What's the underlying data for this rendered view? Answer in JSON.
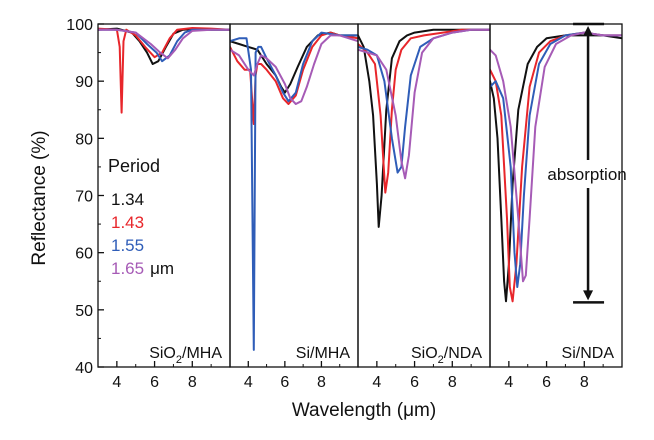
{
  "chart_data": {
    "type": "line",
    "title": "",
    "ylabel": "Reflectance (%)",
    "xlabel": "Wavelength (μm)",
    "ylim": [
      40,
      100
    ],
    "yticks": [
      40,
      50,
      60,
      70,
      80,
      90,
      100
    ],
    "xlim": [
      3,
      10
    ],
    "xticks": [
      4,
      6,
      8
    ],
    "legend": {
      "title": "Period",
      "unit": "μm",
      "entries": [
        {
          "label": "1.34",
          "color": "#111111"
        },
        {
          "label": "1.43",
          "color": "#e8262b"
        },
        {
          "label": "1.55",
          "color": "#2f5db8"
        },
        {
          "label": "1.65",
          "color": "#a65bb6"
        }
      ]
    },
    "panels": [
      {
        "label_main": "SiO",
        "label_sub": "2",
        "label_rest": "/MHA",
        "series": [
          {
            "name": "1.34",
            "color": "#111111",
            "x": [
              3,
              4,
              4.8,
              5.2,
              5.6,
              5.9,
              6.2,
              6.6,
              7.0,
              7.5,
              8,
              9,
              10
            ],
            "y": [
              99,
              99.2,
              98.5,
              97,
              95,
              93,
              93.5,
              96,
              98.3,
              99,
              99.1,
              99,
              99
            ]
          },
          {
            "name": "1.43",
            "color": "#e8262b",
            "x": [
              3,
              4,
              4.15,
              4.25,
              4.35,
              4.5,
              5,
              5.5,
              6.0,
              6.4,
              6.8,
              7.2,
              8,
              9,
              10
            ],
            "y": [
              99.2,
              99,
              96,
              84.5,
              97,
              99,
              98,
              96,
              94.2,
              95,
              97.5,
              99,
              99.3,
              99.2,
              99
            ]
          },
          {
            "name": "1.55",
            "color": "#2f5db8",
            "x": [
              3,
              4,
              5,
              5.6,
              6.1,
              6.4,
              6.8,
              7.2,
              7.6,
              8,
              9,
              10
            ],
            "y": [
              99,
              99,
              98.5,
              96.5,
              95,
              93.5,
              94.5,
              97,
              98.5,
              99,
              99,
              99
            ]
          },
          {
            "name": "1.65",
            "color": "#a65bb6",
            "x": [
              3,
              4,
              5,
              5.8,
              6.3,
              6.7,
              7.1,
              7.5,
              8,
              9,
              10
            ],
            "y": [
              99,
              99,
              98.5,
              96.5,
              95,
              94,
              95.5,
              97.5,
              98.8,
              99,
              99
            ]
          }
        ]
      },
      {
        "label_main": "Si/MHA",
        "label_sub": "",
        "label_rest": "",
        "series": [
          {
            "name": "1.34",
            "color": "#111111",
            "x": [
              3,
              3.5,
              4.0,
              4.5,
              5,
              5.5,
              5.8,
              6.0,
              6.3,
              6.7,
              7.2,
              7.8,
              8.5,
              9,
              10
            ],
            "y": [
              97,
              96.5,
              96,
              95.5,
              93,
              91,
              89,
              88,
              89.5,
              92.5,
              96,
              98,
              98.5,
              98,
              98
            ]
          },
          {
            "name": "1.43",
            "color": "#e8262b",
            "x": [
              3,
              3.4,
              3.8,
              4.1,
              4.3,
              4.4,
              4.5,
              4.7,
              5,
              5.5,
              5.9,
              6.2,
              6.6,
              7.0,
              7.5,
              8,
              8.5,
              9,
              10
            ],
            "y": [
              96,
              93.5,
              92,
              92,
              82.5,
              91,
              93,
              93,
              92,
              90,
              87,
              86,
              87.5,
              92,
              96,
              98,
              98.5,
              98,
              97.5
            ]
          },
          {
            "name": "1.55",
            "color": "#2f5db8",
            "x": [
              3,
              3.5,
              3.9,
              4.15,
              4.3,
              4.4,
              4.55,
              4.7,
              5,
              5.5,
              5.9,
              6.2,
              6.6,
              7.0,
              7.5,
              8,
              9,
              10
            ],
            "y": [
              97,
              97.5,
              97.5,
              92,
              43,
              95,
              96,
              96,
              94,
              91,
              88,
              86.5,
              88,
              93,
              97,
              98.5,
              98,
              98
            ]
          },
          {
            "name": "1.65",
            "color": "#a65bb6",
            "x": [
              3,
              3.5,
              4.0,
              4.3,
              4.5,
              4.7,
              5,
              5.5,
              6.0,
              6.3,
              6.6,
              6.9,
              7.2,
              7.6,
              8,
              8.5,
              9,
              10
            ],
            "y": [
              95.5,
              94.5,
              92,
              91,
              93,
              94.5,
              94,
              92.5,
              89.5,
              87,
              86,
              86.5,
              89,
              93,
              96.5,
              98,
              98,
              97
            ]
          }
        ]
      },
      {
        "label_main": "SiO",
        "label_sub": "2",
        "label_rest": "/NDA",
        "series": [
          {
            "name": "1.34",
            "color": "#111111",
            "x": [
              3,
              3.3,
              3.6,
              3.8,
              4.0,
              4.1,
              4.25,
              4.5,
              4.8,
              5.2,
              5.6,
              6.0,
              7,
              8,
              9,
              10
            ],
            "y": [
              98,
              96,
              90,
              84,
              72,
              64.5,
              70,
              85,
              94,
              97,
              98,
              98.5,
              99,
              99,
              99,
              99
            ]
          },
          {
            "name": "1.43",
            "color": "#e8262b",
            "x": [
              3,
              3.5,
              3.9,
              4.2,
              4.45,
              4.6,
              4.8,
              5.0,
              5.3,
              5.8,
              6.5,
              7.5,
              8.5,
              10
            ],
            "y": [
              96.5,
              95,
              93,
              84,
              70.5,
              74,
              85,
              92,
              95.5,
              97.5,
              98,
              98.5,
              99,
              99
            ]
          },
          {
            "name": "1.55",
            "color": "#2f5db8",
            "x": [
              3,
              3.5,
              4.0,
              4.4,
              4.8,
              5.1,
              5.3,
              5.5,
              5.8,
              6.3,
              7,
              8,
              9,
              10
            ],
            "y": [
              96,
              95.5,
              94.5,
              90,
              80,
              74,
              75,
              82,
              91,
              96,
              97.5,
              98.5,
              99,
              99
            ]
          },
          {
            "name": "1.65",
            "color": "#a65bb6",
            "x": [
              3,
              3.5,
              4.0,
              4.5,
              5.0,
              5.3,
              5.5,
              5.7,
              6.0,
              6.4,
              7,
              8,
              9,
              10
            ],
            "y": [
              95.5,
              95,
              94.5,
              92,
              84,
              76,
              73,
              77,
              88,
              95,
              97.5,
              98.5,
              99,
              99
            ]
          }
        ]
      },
      {
        "label_main": "Si/NDA",
        "label_sub": "",
        "label_rest": "",
        "series": [
          {
            "name": "1.34",
            "color": "#111111",
            "x": [
              3,
              3.2,
              3.4,
              3.6,
              3.75,
              3.85,
              4.0,
              4.2,
              4.5,
              5.0,
              5.5,
              6,
              7,
              8,
              9,
              10
            ],
            "y": [
              90,
              87,
              80,
              66,
              55,
              51.5,
              58,
              72,
              85,
              93,
              96,
              97.5,
              98,
              98,
              98,
              97.5
            ]
          },
          {
            "name": "1.43",
            "color": "#e8262b",
            "x": [
              3,
              3.3,
              3.6,
              3.9,
              4.05,
              4.2,
              4.4,
              4.7,
              5.1,
              5.6,
              6.2,
              7,
              8,
              9,
              10
            ],
            "y": [
              92,
              90,
              84,
              66,
              54,
              51.5,
              58,
              75,
              89,
              95,
              97,
              98,
              98.5,
              98,
              98
            ]
          },
          {
            "name": "1.55",
            "color": "#2f5db8",
            "x": [
              3,
              3.3,
              3.7,
              4.1,
              4.3,
              4.45,
              4.6,
              4.8,
              5.1,
              5.6,
              6.2,
              7,
              8,
              9,
              10
            ],
            "y": [
              89,
              90,
              87,
              75,
              60,
              54,
              58,
              70,
              84,
              93,
              96.5,
              98,
              98.5,
              98,
              98
            ]
          },
          {
            "name": "1.65",
            "color": "#a65bb6",
            "x": [
              3,
              3.3,
              3.7,
              4.1,
              4.5,
              4.75,
              4.9,
              5.1,
              5.4,
              5.9,
              6.5,
              7.3,
              8,
              9,
              10
            ],
            "y": [
              95.5,
              94.5,
              90,
              82,
              66,
              55,
              56,
              66,
              82,
              92.5,
              96.5,
              98,
              98.5,
              98,
              98
            ]
          }
        ]
      }
    ],
    "annotations": [
      {
        "text": "absorption",
        "panel": 3,
        "x": 8.2,
        "y_top": 100,
        "y_bottom": 51.3
      }
    ]
  }
}
